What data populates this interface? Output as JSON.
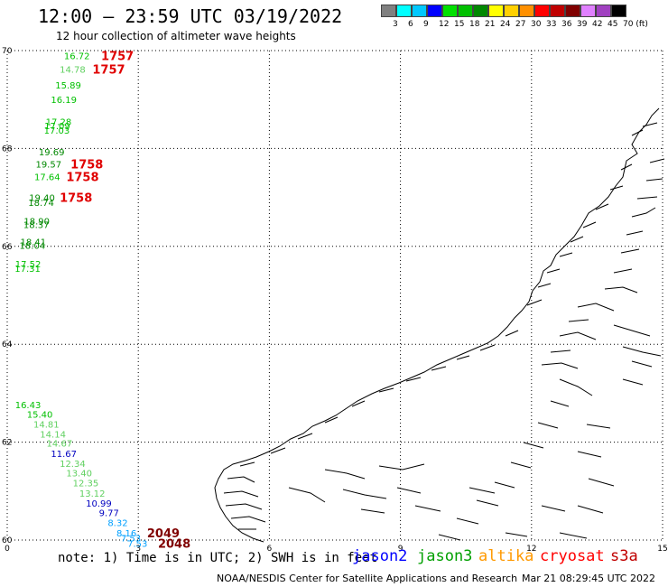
{
  "title": "12:00 – 23:59 UTC 03/19/2022",
  "subtitle": "12 hour collection of altimeter wave heights",
  "colorbar": {
    "colors": [
      "#808080",
      "#00ffff",
      "#00c8ff",
      "#0000ff",
      "#00e000",
      "#00c000",
      "#008800",
      "#ffff00",
      "#ffd000",
      "#ff9000",
      "#ff0000",
      "#c00000",
      "#800000",
      "#e080ff",
      "#a040c0",
      "#000000"
    ],
    "labels": [
      "",
      "3",
      "6",
      "9",
      "12",
      "15",
      "18",
      "21",
      "24",
      "27",
      "30",
      "33",
      "36",
      "39",
      "42",
      "45",
      "70 (ft)"
    ]
  },
  "axes": {
    "lat": {
      "range": [
        60,
        70
      ],
      "ticks": [
        "60",
        "62",
        "64",
        "66",
        "68",
        "70"
      ]
    },
    "lon": {
      "range": [
        0,
        15
      ],
      "ticks": [
        "0",
        "3",
        "6",
        "9",
        "12",
        "15"
      ]
    }
  },
  "measurements": [
    {
      "lat": 69.9,
      "lon": 1.3,
      "value": "16.72",
      "color": "#00c000"
    },
    {
      "lat": 69.62,
      "lon": 1.2,
      "value": "14.78",
      "color": "#60d060"
    },
    {
      "lat": 69.3,
      "lon": 1.1,
      "value": "15.89",
      "color": "#00c000"
    },
    {
      "lat": 69.0,
      "lon": 1.0,
      "value": "16.19",
      "color": "#00c000"
    },
    {
      "lat": 68.55,
      "lon": 0.88,
      "value": "17.28",
      "color": "#00c000"
    },
    {
      "lat": 68.47,
      "lon": 0.85,
      "value": "17.09",
      "color": "#00c000"
    },
    {
      "lat": 68.38,
      "lon": 0.84,
      "value": "17.03",
      "color": "#00c000"
    },
    {
      "lat": 67.93,
      "lon": 0.72,
      "value": "19.69",
      "color": "#008800"
    },
    {
      "lat": 67.68,
      "lon": 0.65,
      "value": "19.57",
      "color": "#008800"
    },
    {
      "lat": 67.43,
      "lon": 0.62,
      "value": "17.64",
      "color": "#00c000"
    },
    {
      "lat": 67.0,
      "lon": 0.5,
      "value": "19.40",
      "color": "#008800"
    },
    {
      "lat": 66.9,
      "lon": 0.48,
      "value": "18.74",
      "color": "#008800"
    },
    {
      "lat": 66.52,
      "lon": 0.38,
      "value": "18.90",
      "color": "#008800"
    },
    {
      "lat": 66.45,
      "lon": 0.37,
      "value": "18.37",
      "color": "#008800"
    },
    {
      "lat": 66.1,
      "lon": 0.3,
      "value": "18.41",
      "color": "#008800"
    },
    {
      "lat": 66.02,
      "lon": 0.28,
      "value": "18.04",
      "color": "#008800"
    },
    {
      "lat": 65.65,
      "lon": 0.18,
      "value": "17.52",
      "color": "#00c000"
    },
    {
      "lat": 65.55,
      "lon": 0.17,
      "value": "17.31",
      "color": "#00c000"
    },
    {
      "lat": 62.77,
      "lon": 0.18,
      "value": "16.43",
      "color": "#00c000"
    },
    {
      "lat": 62.57,
      "lon": 0.45,
      "value": "15.40",
      "color": "#00c000"
    },
    {
      "lat": 62.37,
      "lon": 0.6,
      "value": "14.81",
      "color": "#60d060"
    },
    {
      "lat": 62.17,
      "lon": 0.75,
      "value": "14.14",
      "color": "#60d060"
    },
    {
      "lat": 61.98,
      "lon": 0.9,
      "value": "14.67",
      "color": "#60d060"
    },
    {
      "lat": 61.77,
      "lon": 1.0,
      "value": "11.67",
      "color": "#0000c0"
    },
    {
      "lat": 61.57,
      "lon": 1.2,
      "value": "12.34",
      "color": "#60d060"
    },
    {
      "lat": 61.37,
      "lon": 1.35,
      "value": "13.40",
      "color": "#60d060"
    },
    {
      "lat": 61.17,
      "lon": 1.5,
      "value": "12.35",
      "color": "#60d060"
    },
    {
      "lat": 60.96,
      "lon": 1.65,
      "value": "13.12",
      "color": "#60d060"
    },
    {
      "lat": 60.76,
      "lon": 1.8,
      "value": "10.99",
      "color": "#0000c0"
    },
    {
      "lat": 60.56,
      "lon": 2.1,
      "value": "9.77",
      "color": "#0000c0"
    },
    {
      "lat": 60.36,
      "lon": 2.3,
      "value": "8.32",
      "color": "#00a0ff"
    },
    {
      "lat": 60.15,
      "lon": 2.5,
      "value": "8.16",
      "color": "#00a0ff"
    },
    {
      "lat": 60.05,
      "lon": 2.6,
      "value": "7.53",
      "color": "#00a0ff"
    },
    {
      "lat": 59.94,
      "lon": 2.75,
      "value": "7.53",
      "color": "#00a0ff"
    }
  ],
  "time_labels": [
    {
      "lat": 69.9,
      "lon": 2.15,
      "value": "1757",
      "color": "#e00000"
    },
    {
      "lat": 69.62,
      "lon": 1.95,
      "value": "1757",
      "color": "#e00000"
    },
    {
      "lat": 67.68,
      "lon": 1.45,
      "value": "1758",
      "color": "#e00000"
    },
    {
      "lat": 67.43,
      "lon": 1.35,
      "value": "1758",
      "color": "#e00000"
    },
    {
      "lat": 67.0,
      "lon": 1.2,
      "value": "1758",
      "color": "#e00000"
    },
    {
      "lat": 60.15,
      "lon": 3.2,
      "value": "2049",
      "color": "#800000"
    },
    {
      "lat": 59.94,
      "lon": 3.45,
      "value": "2048",
      "color": "#800000"
    }
  ],
  "footer": {
    "note": "note: 1) Time is in UTC; 2) SWH is in feet",
    "satellites": [
      {
        "name": "jason2",
        "color": "#0000ff"
      },
      {
        "name": "jason3",
        "color": "#00a000"
      },
      {
        "name": "altika",
        "color": "#ff9900"
      },
      {
        "name": "cryosat",
        "color": "#ff0000"
      },
      {
        "name": "s3a",
        "color": "#c00000"
      }
    ],
    "credit": "NOAA/NESDIS Center for Satellite Applications and Research",
    "timestamp": "Mar 21 08:29:45 UTC 2022"
  }
}
